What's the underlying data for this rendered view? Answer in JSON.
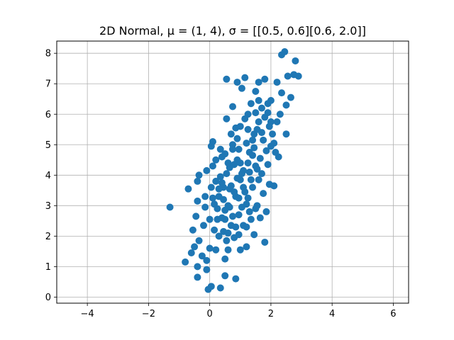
{
  "chart_data": {
    "type": "scatter",
    "title": "2D Normal, μ = (1, 4), σ = [[0.5, 0.6][0.6, 2.0]]",
    "xlabel": "",
    "ylabel": "",
    "xlim": [
      -5.0,
      6.5
    ],
    "ylim": [
      -0.2,
      8.4
    ],
    "xticks": [
      -4,
      -2,
      0,
      2,
      4,
      6
    ],
    "xtick_labels": [
      "−4",
      "−2",
      "0",
      "2",
      "4",
      "6"
    ],
    "yticks": [
      0,
      1,
      2,
      3,
      4,
      5,
      6,
      7,
      8
    ],
    "ytick_labels": [
      "0",
      "1",
      "2",
      "3",
      "4",
      "5",
      "6",
      "7",
      "8"
    ],
    "grid": true,
    "series": [
      {
        "color": "#1f77b4",
        "points": [
          [
            -1.3,
            2.95
          ],
          [
            -0.7,
            3.55
          ],
          [
            -0.8,
            1.15
          ],
          [
            -0.6,
            1.45
          ],
          [
            -0.5,
            1.65
          ],
          [
            -0.55,
            2.2
          ],
          [
            -0.4,
            0.65
          ],
          [
            -0.4,
            1.0
          ],
          [
            -0.35,
            1.85
          ],
          [
            -0.45,
            2.65
          ],
          [
            -0.4,
            3.15
          ],
          [
            -0.4,
            3.8
          ],
          [
            -0.35,
            4.0
          ],
          [
            -0.25,
            1.35
          ],
          [
            -0.2,
            2.35
          ],
          [
            -0.15,
            2.95
          ],
          [
            -0.15,
            3.3
          ],
          [
            -0.1,
            0.9
          ],
          [
            -0.1,
            1.2
          ],
          [
            -0.1,
            4.15
          ],
          [
            -0.05,
            0.25
          ],
          [
            0.0,
            1.6
          ],
          [
            0.0,
            2.55
          ],
          [
            0.05,
            0.35
          ],
          [
            0.05,
            3.6
          ],
          [
            0.1,
            4.3
          ],
          [
            0.05,
            4.95
          ],
          [
            0.1,
            5.1
          ],
          [
            0.15,
            2.2
          ],
          [
            0.2,
            1.55
          ],
          [
            0.25,
            2.9
          ],
          [
            0.3,
            3.3
          ],
          [
            0.35,
            0.3
          ],
          [
            0.35,
            3.95
          ],
          [
            0.4,
            4.6
          ],
          [
            0.45,
            2.15
          ],
          [
            0.45,
            3.6
          ],
          [
            0.5,
            0.7
          ],
          [
            0.5,
            1.25
          ],
          [
            0.5,
            2.55
          ],
          [
            0.55,
            5.85
          ],
          [
            0.55,
            7.15
          ],
          [
            0.6,
            1.55
          ],
          [
            0.6,
            3.0
          ],
          [
            0.65,
            4.25
          ],
          [
            0.7,
            2.35
          ],
          [
            0.7,
            3.65
          ],
          [
            0.75,
            5.0
          ],
          [
            0.75,
            6.25
          ],
          [
            0.8,
            1.95
          ],
          [
            0.85,
            0.6
          ],
          [
            0.85,
            3.3
          ],
          [
            0.9,
            4.5
          ],
          [
            0.9,
            7.05
          ],
          [
            0.95,
            2.7
          ],
          [
            1.0,
            1.55
          ],
          [
            1.0,
            3.85
          ],
          [
            1.0,
            5.6
          ],
          [
            1.05,
            6.85
          ],
          [
            1.1,
            2.35
          ],
          [
            1.1,
            4.15
          ],
          [
            1.15,
            7.2
          ],
          [
            1.2,
            1.65
          ],
          [
            1.2,
            3.05
          ],
          [
            1.2,
            5.05
          ],
          [
            1.25,
            6.0
          ],
          [
            1.3,
            2.8
          ],
          [
            1.3,
            4.75
          ],
          [
            1.35,
            6.35
          ],
          [
            1.4,
            3.6
          ],
          [
            1.45,
            2.05
          ],
          [
            1.45,
            5.35
          ],
          [
            1.5,
            4.3
          ],
          [
            1.5,
            6.75
          ],
          [
            1.55,
            3.0
          ],
          [
            1.6,
            5.75
          ],
          [
            1.6,
            7.05
          ],
          [
            1.65,
            2.6
          ],
          [
            1.65,
            4.55
          ],
          [
            1.7,
            6.2
          ],
          [
            1.75,
            3.4
          ],
          [
            1.75,
            5.15
          ],
          [
            1.8,
            7.15
          ],
          [
            1.8,
            1.8
          ],
          [
            1.85,
            2.8
          ],
          [
            1.85,
            4.8
          ],
          [
            1.9,
            6.05
          ],
          [
            1.95,
            3.7
          ],
          [
            1.95,
            5.6
          ],
          [
            2.0,
            4.95
          ],
          [
            2.0,
            6.45
          ],
          [
            2.05,
            5.35
          ],
          [
            2.1,
            3.65
          ],
          [
            2.2,
            5.75
          ],
          [
            2.2,
            7.05
          ],
          [
            2.25,
            4.6
          ],
          [
            2.3,
            6.0
          ],
          [
            2.35,
            6.7
          ],
          [
            2.35,
            7.95
          ],
          [
            2.45,
            8.05
          ],
          [
            2.5,
            6.3
          ],
          [
            2.5,
            5.35
          ],
          [
            2.55,
            7.25
          ],
          [
            2.65,
            6.55
          ],
          [
            2.75,
            7.3
          ],
          [
            2.8,
            7.75
          ],
          [
            2.9,
            7.25
          ],
          [
            0.55,
            4.05
          ],
          [
            0.65,
            3.55
          ],
          [
            0.8,
            4.35
          ],
          [
            0.95,
            3.25
          ],
          [
            1.05,
            4.05
          ],
          [
            1.15,
            3.45
          ],
          [
            1.25,
            4.4
          ],
          [
            1.35,
            3.85
          ],
          [
            0.4,
            2.6
          ],
          [
            0.6,
            2.1
          ],
          [
            0.3,
            3.55
          ],
          [
            0.2,
            4.5
          ],
          [
            0.7,
            5.35
          ],
          [
            0.85,
            5.55
          ],
          [
            1.4,
            5.15
          ],
          [
            1.55,
            5.5
          ],
          [
            1.7,
            4.05
          ],
          [
            0.15,
            3.05
          ],
          [
            0.3,
            2.0
          ],
          [
            1.05,
            2.95
          ],
          [
            0.95,
            4.85
          ],
          [
            0.5,
            4.7
          ],
          [
            1.25,
            5.5
          ],
          [
            0.75,
            2.65
          ],
          [
            1.1,
            3.6
          ],
          [
            0.45,
            3.2
          ],
          [
            0.9,
            3.9
          ],
          [
            1.6,
            3.85
          ],
          [
            1.35,
            2.55
          ],
          [
            0.6,
            4.4
          ],
          [
            0.35,
            4.85
          ],
          [
            0.25,
            2.55
          ],
          [
            1.45,
            4.9
          ],
          [
            1.7,
            5.4
          ],
          [
            1.9,
            4.35
          ],
          [
            2.1,
            5.05
          ],
          [
            0.55,
            1.85
          ],
          [
            0.95,
            2.05
          ],
          [
            1.2,
            2.3
          ],
          [
            1.5,
            2.9
          ],
          [
            0.8,
            3.45
          ],
          [
            1.0,
            4.4
          ],
          [
            0.65,
            2.95
          ],
          [
            0.4,
            3.75
          ],
          [
            1.3,
            4.1
          ],
          [
            0.9,
            5.2
          ],
          [
            1.15,
            5.85
          ],
          [
            1.5,
            6.05
          ],
          [
            1.8,
            5.9
          ],
          [
            2.0,
            5.75
          ],
          [
            0.75,
            4.85
          ],
          [
            1.25,
            3.25
          ],
          [
            1.55,
            4.2
          ],
          [
            0.85,
            2.3
          ],
          [
            0.5,
            2.85
          ],
          [
            0.2,
            3.8
          ],
          [
            0.1,
            3.25
          ],
          [
            1.6,
            6.45
          ],
          [
            1.9,
            6.35
          ],
          [
            2.15,
            4.75
          ],
          [
            1.4,
            4.65
          ]
        ]
      }
    ]
  }
}
